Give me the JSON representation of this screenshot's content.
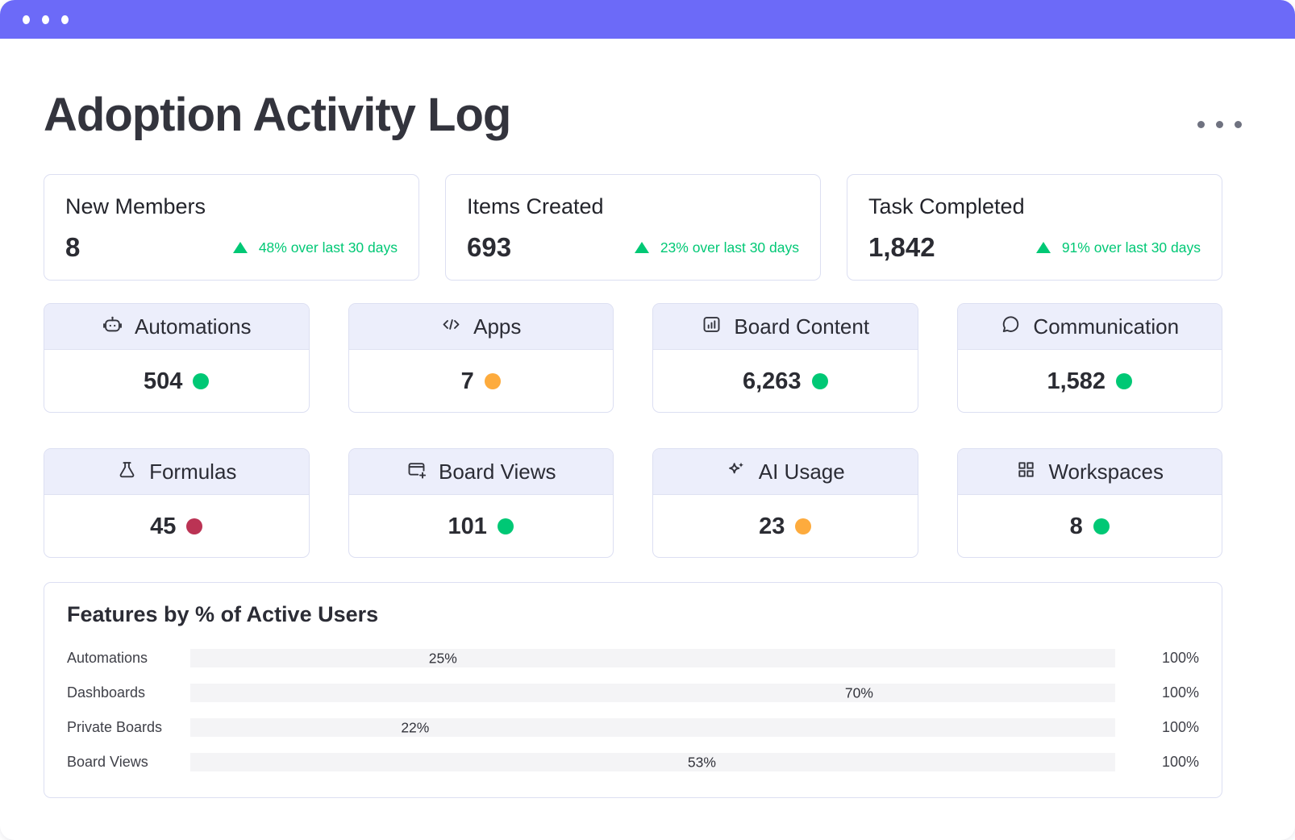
{
  "header": {
    "title": "Adoption Activity Log"
  },
  "colors": {
    "green": "#00c875",
    "orange": "#fdab3d",
    "red": "#bb3354",
    "accent_purple": "#6c6af8",
    "bar_purple": "#6d6af3",
    "track_gray": "#f4f4f6"
  },
  "stats": [
    {
      "label": "New Members",
      "value": "8",
      "delta": "48% over last 30 days"
    },
    {
      "label": "Items Created",
      "value": "693",
      "delta": "23% over last 30 days"
    },
    {
      "label": "Task Completed",
      "value": "1,842",
      "delta": "91% over last 30 days"
    }
  ],
  "features": [
    {
      "label": "Automations",
      "icon": "robot-icon",
      "value": "504",
      "status": "green"
    },
    {
      "label": "Apps",
      "icon": "code-icon",
      "value": "7",
      "status": "orange"
    },
    {
      "label": "Board Content",
      "icon": "bar-chart-icon",
      "value": "6,263",
      "status": "green"
    },
    {
      "label": "Communication",
      "icon": "speech-bubble-icon",
      "value": "1,582",
      "status": "green"
    },
    {
      "label": "Formulas",
      "icon": "flask-icon",
      "value": "45",
      "status": "red"
    },
    {
      "label": "Board Views",
      "icon": "board-add-icon",
      "value": "101",
      "status": "green"
    },
    {
      "label": "AI Usage",
      "icon": "sparkles-icon",
      "value": "23",
      "status": "orange"
    },
    {
      "label": "Workspaces",
      "icon": "grid-icon",
      "value": "8",
      "status": "green"
    }
  ],
  "chart_data": {
    "type": "bar",
    "orientation": "horizontal",
    "title": "Features by % of Active Users",
    "categories": [
      "Automations",
      "Dashboards",
      "Private Boards",
      "Board Views"
    ],
    "values": [
      25,
      70,
      22,
      53
    ],
    "value_labels": [
      "25%",
      "70%",
      "22%",
      "53%"
    ],
    "right_labels": [
      "100%",
      "100%",
      "100%",
      "100%"
    ],
    "xlim": [
      0,
      100
    ],
    "legend": "none",
    "grid": "off"
  }
}
